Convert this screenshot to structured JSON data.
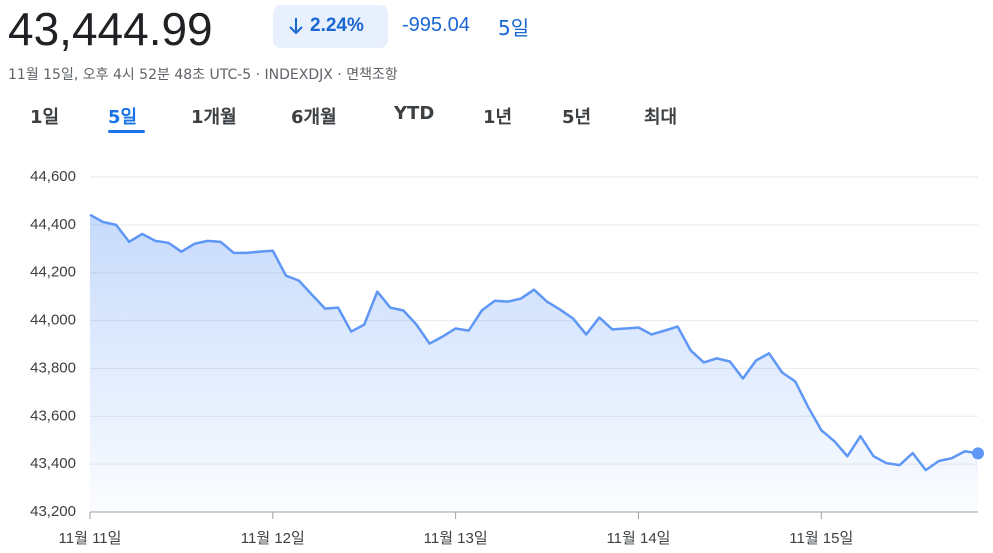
{
  "header": {
    "price": "43,444.99",
    "change_percent": "2.24%",
    "change": "-995.04",
    "period": "5일",
    "subtitle": "11월 15일, 오후 4시 52분 48초 UTC-5 · INDEXDJX · 면책조항"
  },
  "tabs": [
    "1일",
    "5일",
    "1개월",
    "6개월",
    "YTD",
    "1년",
    "5년",
    "최대"
  ],
  "chart_data": {
    "type": "line",
    "color": "#5e97f6",
    "categories": [
      "11월 11일",
      null,
      null,
      null,
      null,
      null,
      null,
      null,
      null,
      null,
      null,
      null,
      null,
      null,
      "11월 12일",
      null,
      null,
      null,
      null,
      null,
      null,
      null,
      null,
      null,
      null,
      null,
      null,
      null,
      "11월 13일",
      null,
      null,
      null,
      null,
      null,
      null,
      null,
      null,
      null,
      null,
      null,
      null,
      null,
      "11월 14일",
      null,
      null,
      null,
      null,
      null,
      null,
      null,
      null,
      null,
      null,
      null,
      null,
      null,
      "11월 15일",
      null,
      null,
      null,
      null,
      null,
      null,
      null,
      null,
      null,
      null,
      null,
      null
    ],
    "values": [
      44442,
      44412,
      44400,
      44329,
      44362,
      44333,
      44325,
      44288,
      44321,
      44333,
      44329,
      44283,
      44283,
      44288,
      44292,
      44188,
      44167,
      44108,
      44050,
      44054,
      43954,
      43983,
      44121,
      44054,
      44042,
      43983,
      43904,
      43933,
      43967,
      43958,
      44042,
      44083,
      44079,
      44092,
      44129,
      44079,
      44046,
      44008,
      43942,
      44013,
      43963,
      43967,
      43971,
      43942,
      43958,
      43975,
      43875,
      43825,
      43842,
      43829,
      43758,
      43833,
      43863,
      43783,
      43746,
      43638,
      43542,
      43496,
      43433,
      43517,
      43433,
      43404,
      43396,
      43446,
      43375,
      43413,
      43425,
      43454,
      43445
    ],
    "ylim": [
      43200,
      44600
    ],
    "yticks": [
      {
        "value": 43200,
        "label": "43,200"
      },
      {
        "value": 43400,
        "label": "43,400"
      },
      {
        "value": 43600,
        "label": "43,600"
      },
      {
        "value": 43800,
        "label": "43,800"
      },
      {
        "value": 44000,
        "label": "44,000"
      },
      {
        "value": 44200,
        "label": "44,200"
      },
      {
        "value": 44400,
        "label": "44,400"
      },
      {
        "value": 44600,
        "label": "44,600"
      }
    ],
    "grid": true
  }
}
